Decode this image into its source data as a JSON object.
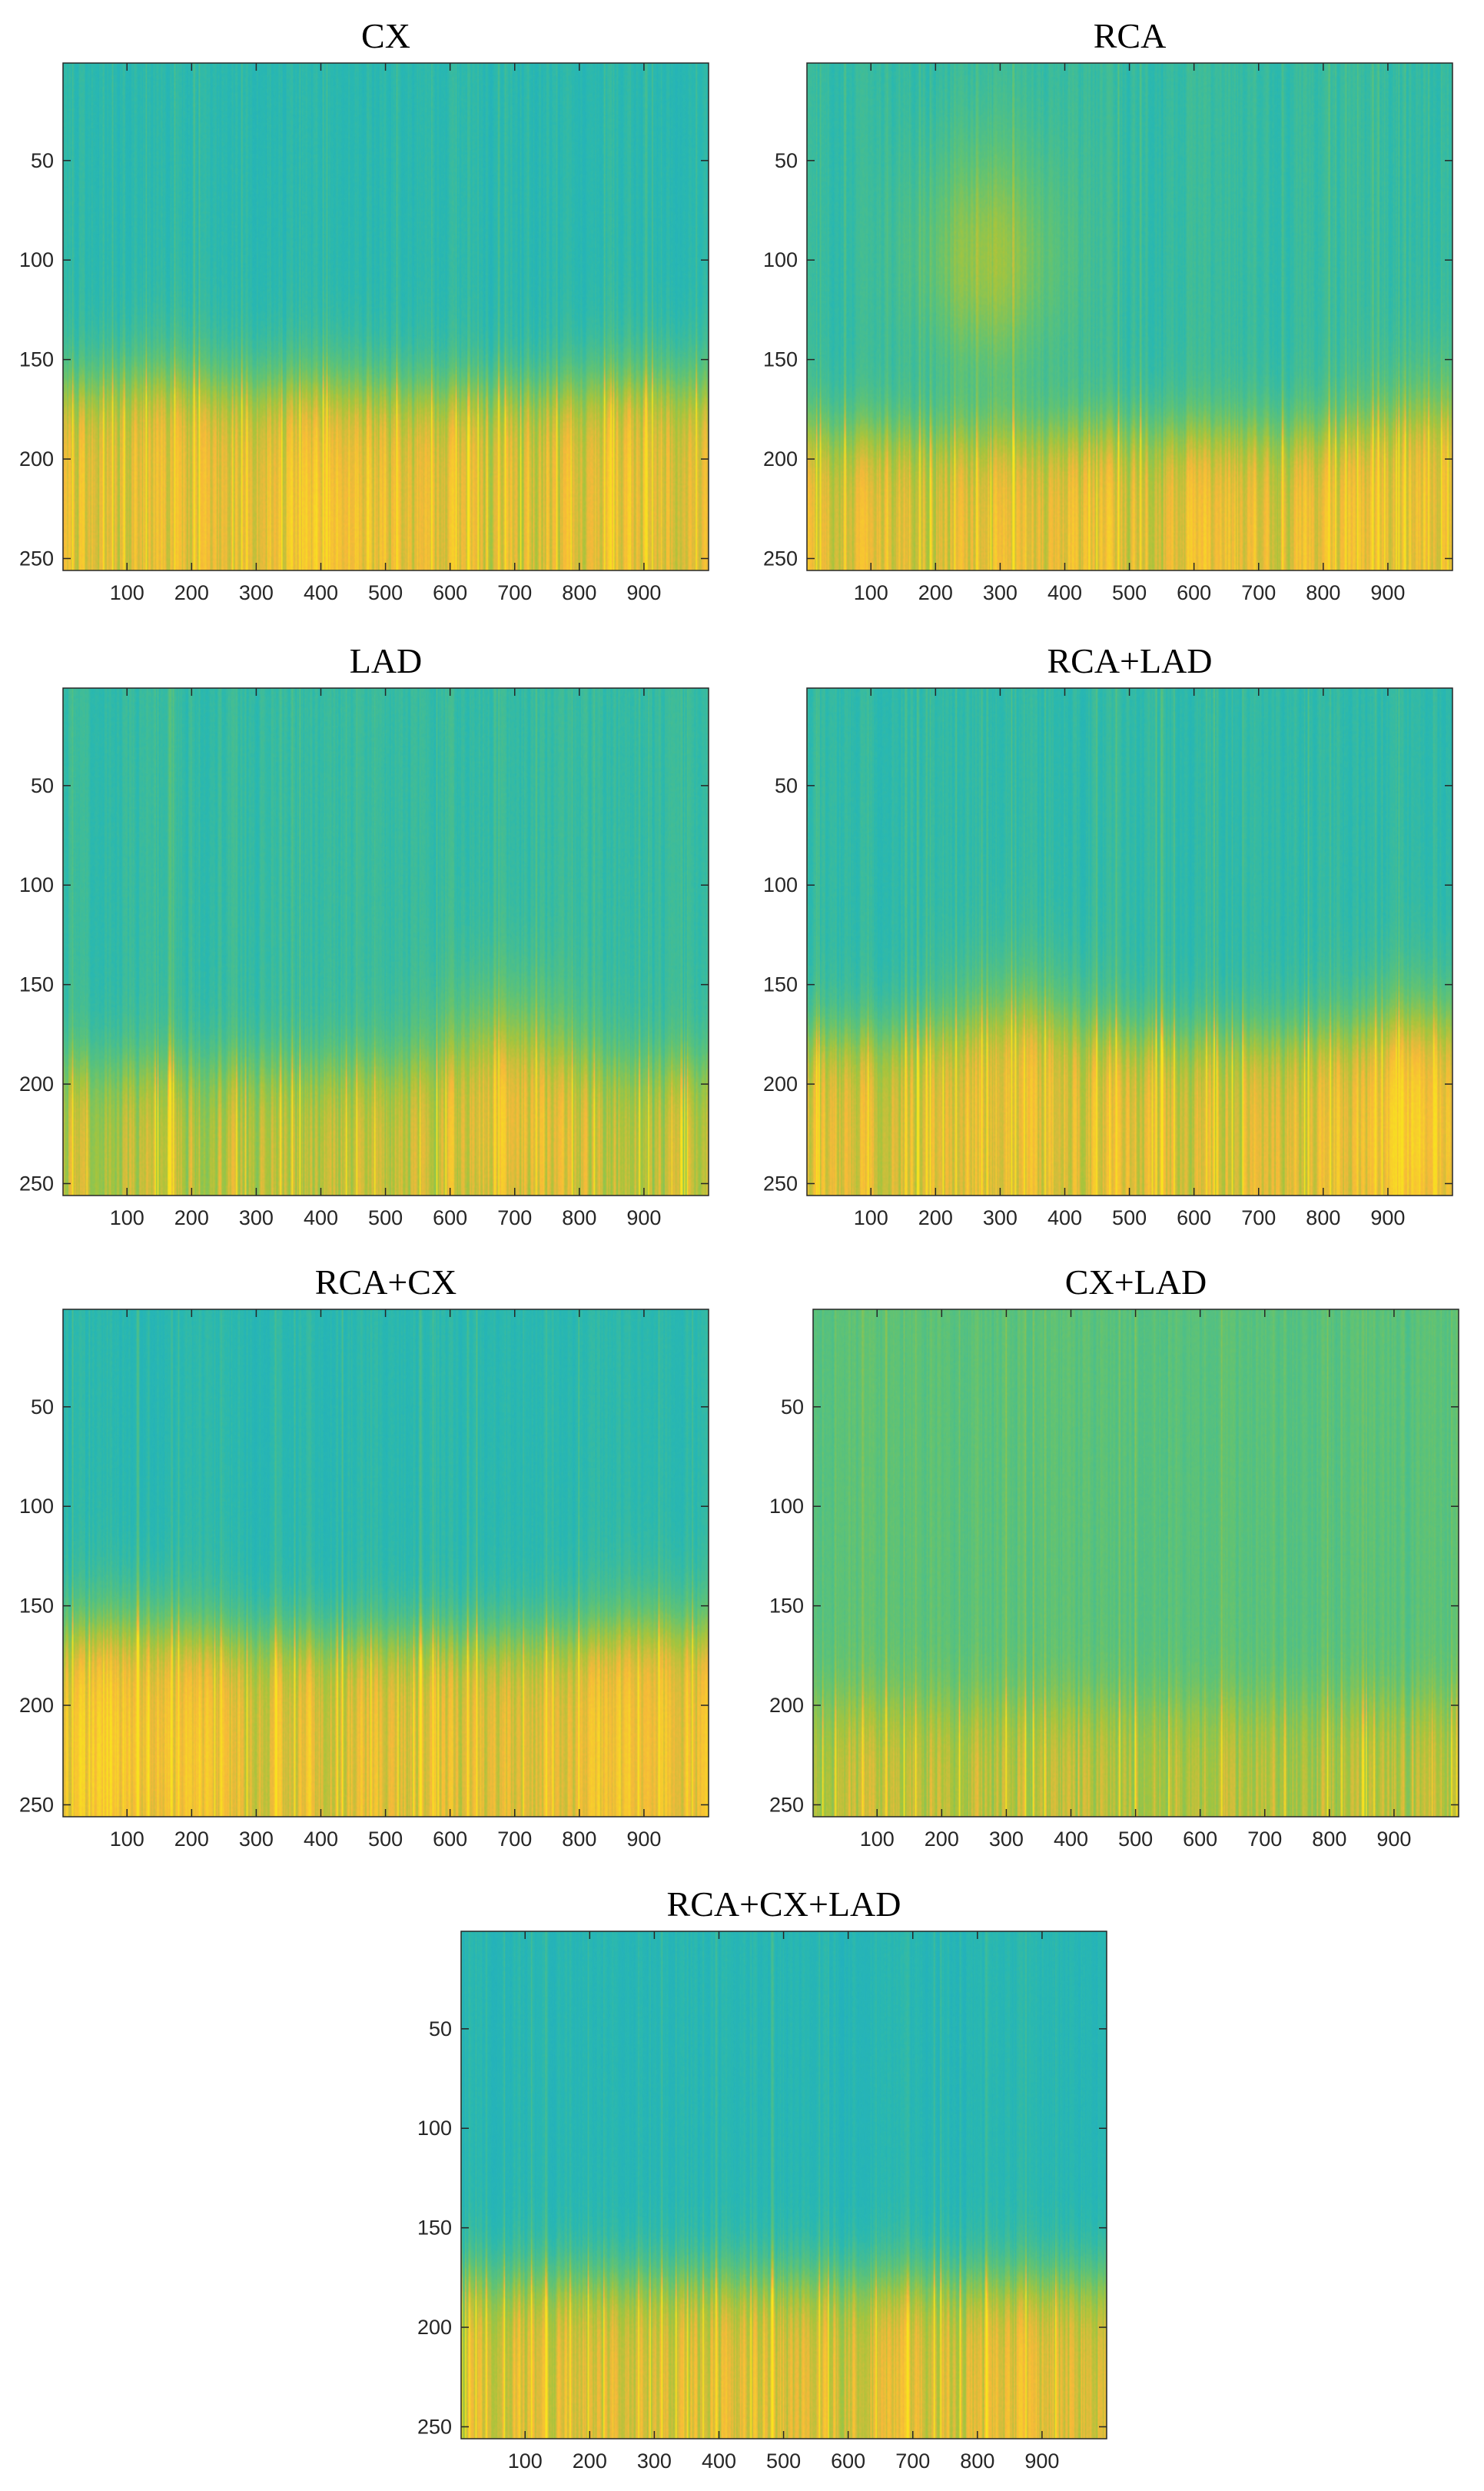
{
  "figure": {
    "layout": "seven heatmap panels; three rows of two plus one centered",
    "colormap": "parula",
    "colors": {
      "low": "#1aa8cf",
      "mid_low": "#2ab8b0",
      "mid": "#62c373",
      "mid_high": "#a8c43c",
      "high": "#f6b93a",
      "peak": "#f9e21f",
      "axis": "#262626",
      "background": "#ffffff"
    }
  },
  "chart_data": [
    {
      "type": "heatmap",
      "title": "CX",
      "xlabel": "",
      "ylabel": "",
      "xlim": [
        1,
        1000
      ],
      "ylim": [
        1,
        256
      ],
      "y_direction": "reversed",
      "x_ticks": [
        100,
        200,
        300,
        400,
        500,
        600,
        700,
        800,
        900
      ],
      "y_ticks": [
        50,
        100,
        150,
        200,
        250
      ],
      "grid": false,
      "transition_row": 165,
      "top_value": 0.25,
      "bottom_value": 0.78,
      "blobs": [
        {
          "center_x": 400,
          "center_y": 235,
          "value": 0.88
        },
        {
          "center_x": 150,
          "center_y": 225,
          "value": 0.8
        },
        {
          "center_x": 900,
          "center_y": 230,
          "value": 0.82
        }
      ]
    },
    {
      "type": "heatmap",
      "title": "RCA",
      "xlabel": "",
      "ylabel": "",
      "xlim": [
        1,
        1000
      ],
      "ylim": [
        1,
        256
      ],
      "y_direction": "reversed",
      "x_ticks": [
        100,
        200,
        300,
        400,
        500,
        600,
        700,
        800,
        900
      ],
      "y_ticks": [
        50,
        100,
        150,
        200,
        250
      ],
      "grid": false,
      "transition_row": 185,
      "top_value": 0.3,
      "bottom_value": 0.8,
      "blobs": [
        {
          "center_x": 280,
          "center_y": 100,
          "value": 0.62
        },
        {
          "center_x": 980,
          "center_y": 230,
          "value": 0.85
        }
      ]
    },
    {
      "type": "heatmap",
      "title": "LAD",
      "xlabel": "",
      "ylabel": "",
      "xlim": [
        1,
        1000
      ],
      "ylim": [
        1,
        256
      ],
      "y_direction": "reversed",
      "x_ticks": [
        100,
        200,
        300,
        400,
        500,
        600,
        700,
        800,
        900
      ],
      "y_ticks": [
        50,
        100,
        150,
        200,
        250
      ],
      "grid": false,
      "transition_row": 190,
      "top_value": 0.3,
      "bottom_value": 0.7,
      "blobs": [
        {
          "center_x": 690,
          "center_y": 220,
          "value": 0.82
        }
      ]
    },
    {
      "type": "heatmap",
      "title": "RCA+LAD",
      "xlabel": "",
      "ylabel": "",
      "xlim": [
        1,
        1000
      ],
      "ylim": [
        1,
        256
      ],
      "y_direction": "reversed",
      "x_ticks": [
        100,
        200,
        300,
        400,
        500,
        600,
        700,
        800,
        900
      ],
      "y_ticks": [
        50,
        100,
        150,
        200,
        250
      ],
      "grid": false,
      "transition_row": 175,
      "top_value": 0.28,
      "bottom_value": 0.78,
      "blobs": [
        {
          "center_x": 950,
          "center_y": 225,
          "value": 0.92
        },
        {
          "center_x": 330,
          "center_y": 215,
          "value": 0.82
        }
      ]
    },
    {
      "type": "heatmap",
      "title": "RCA+CX",
      "xlabel": "",
      "ylabel": "",
      "xlim": [
        1,
        1000
      ],
      "ylim": [
        1,
        256
      ],
      "y_direction": "reversed",
      "x_ticks": [
        100,
        200,
        300,
        400,
        500,
        600,
        700,
        800,
        900
      ],
      "y_ticks": [
        50,
        100,
        150,
        200,
        250
      ],
      "grid": false,
      "transition_row": 165,
      "top_value": 0.25,
      "bottom_value": 0.8,
      "blobs": [
        {
          "center_x": 100,
          "center_y": 225,
          "value": 0.92
        },
        {
          "center_x": 920,
          "center_y": 225,
          "value": 0.84
        }
      ]
    },
    {
      "type": "heatmap",
      "title": "CX+LAD",
      "xlabel": "",
      "ylabel": "",
      "xlim": [
        1,
        1000
      ],
      "ylim": [
        1,
        256
      ],
      "y_direction": "reversed",
      "x_ticks": [
        100,
        200,
        300,
        400,
        500,
        600,
        700,
        800,
        900
      ],
      "y_ticks": [
        50,
        100,
        150,
        200,
        250
      ],
      "grid": false,
      "transition_row": 200,
      "top_value": 0.45,
      "bottom_value": 0.7,
      "blobs": []
    },
    {
      "type": "heatmap",
      "title": "RCA+CX+LAD",
      "xlabel": "",
      "ylabel": "",
      "xlim": [
        1,
        1000
      ],
      "ylim": [
        1,
        256
      ],
      "y_direction": "reversed",
      "x_ticks": [
        100,
        200,
        300,
        400,
        500,
        600,
        700,
        800,
        900
      ],
      "y_ticks": [
        50,
        100,
        150,
        200,
        250
      ],
      "grid": false,
      "transition_row": 175,
      "top_value": 0.22,
      "bottom_value": 0.78,
      "blobs": []
    }
  ]
}
